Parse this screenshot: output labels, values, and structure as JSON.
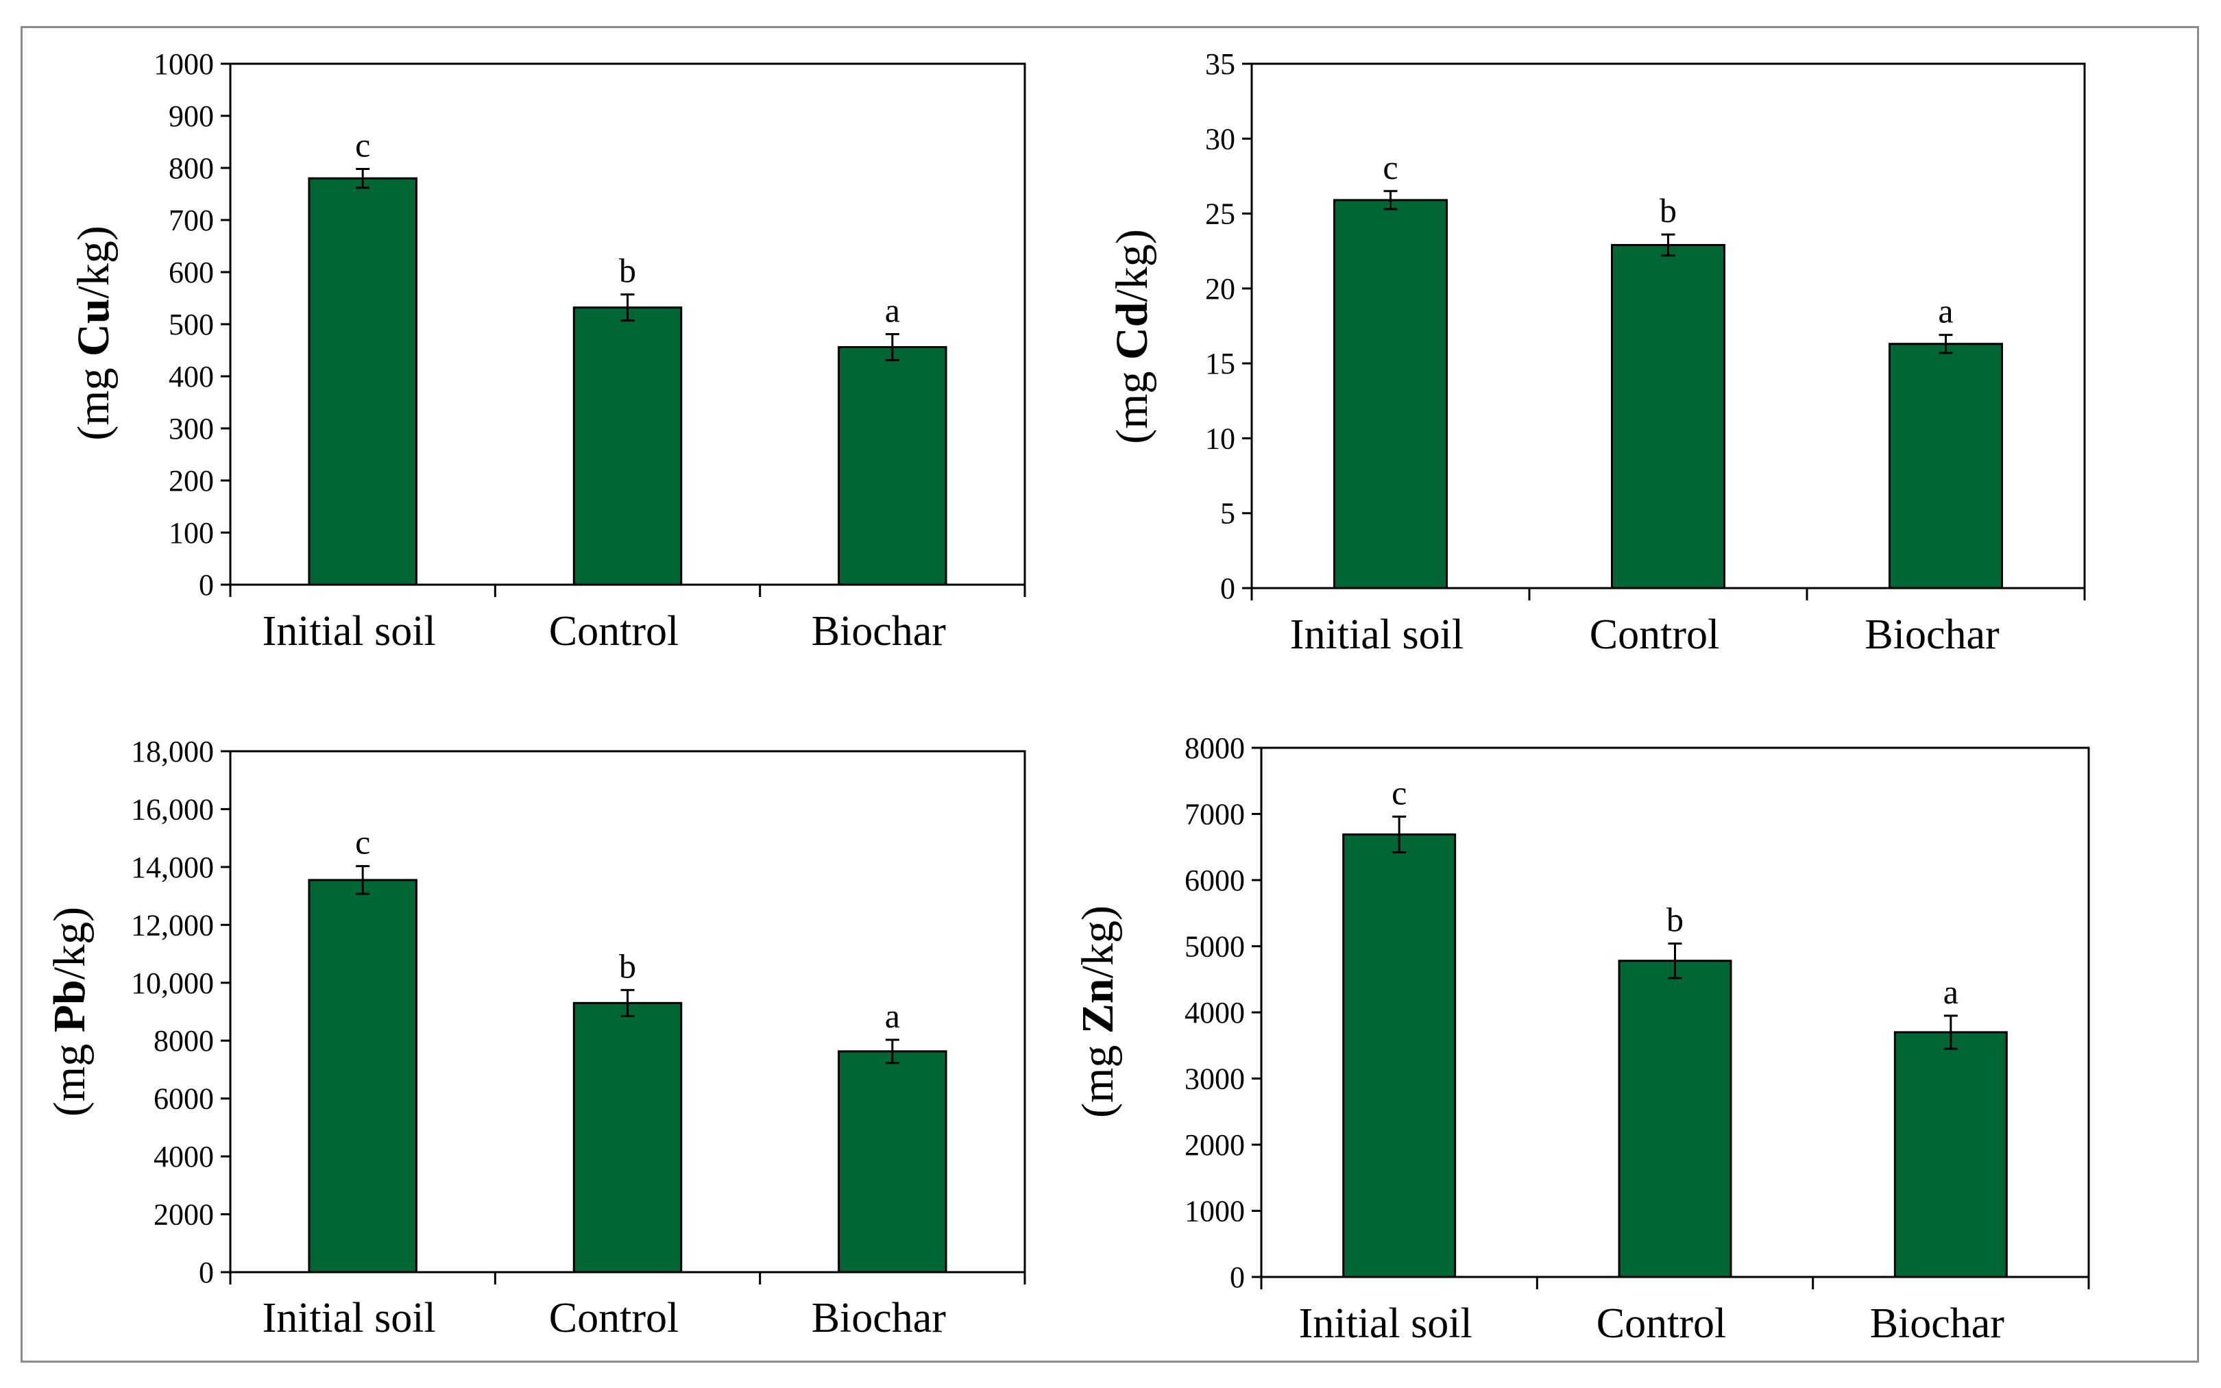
{
  "chart_data": [
    {
      "type": "bar",
      "categories": [
        "Initial soil",
        "Control",
        "Biochar"
      ],
      "values": [
        780,
        532,
        456
      ],
      "errors": [
        18,
        25,
        25
      ],
      "labels": [
        "c",
        "b",
        "a"
      ],
      "ylabel_parts": [
        "(mg ",
        "Cu",
        "/kg)"
      ],
      "yticks": [
        0,
        100,
        200,
        300,
        400,
        500,
        600,
        700,
        800,
        900,
        1000
      ],
      "ytick_labels": [
        "0",
        "100",
        "200",
        "300",
        "400",
        "500",
        "600",
        "700",
        "800",
        "900",
        "1000"
      ],
      "ylim": [
        0,
        1000
      ],
      "grid": false,
      "color": "#006633"
    },
    {
      "type": "bar",
      "categories": [
        "Initial soil",
        "Control",
        "Biochar"
      ],
      "values": [
        25.9,
        22.9,
        16.3
      ],
      "errors": [
        0.6,
        0.7,
        0.6
      ],
      "labels": [
        "c",
        "b",
        "a"
      ],
      "ylabel_parts": [
        "(mg ",
        "Cd",
        "/kg)"
      ],
      "yticks": [
        0,
        5,
        10,
        15,
        20,
        25,
        30,
        35
      ],
      "ytick_labels": [
        "0",
        "5",
        "10",
        "15",
        "20",
        "25",
        "30",
        "35"
      ],
      "ylim": [
        0,
        35
      ],
      "grid": false,
      "color": "#006633"
    },
    {
      "type": "bar",
      "categories": [
        "Initial soil",
        "Control",
        "Biochar"
      ],
      "values": [
        13550,
        9300,
        7630
      ],
      "errors": [
        480,
        450,
        400
      ],
      "labels": [
        "c",
        "b",
        "a"
      ],
      "ylabel_parts": [
        "(mg ",
        "Pb",
        "/kg)"
      ],
      "yticks": [
        0,
        2000,
        4000,
        6000,
        8000,
        10000,
        12000,
        14000,
        16000,
        18000
      ],
      "ytick_labels": [
        "0",
        "2000",
        "4000",
        "6000",
        "8000",
        "10,000",
        "12,000",
        "14,000",
        "16,000",
        "18,000"
      ],
      "ylim": [
        0,
        18000
      ],
      "grid": false,
      "color": "#006633"
    },
    {
      "type": "bar",
      "categories": [
        "Initial soil",
        "Control",
        "Biochar"
      ],
      "values": [
        6690,
        4780,
        3700
      ],
      "errors": [
        270,
        260,
        250
      ],
      "labels": [
        "c",
        "b",
        "a"
      ],
      "ylabel_parts": [
        "(mg ",
        "Zn",
        "/kg)"
      ],
      "yticks": [
        0,
        1000,
        2000,
        3000,
        4000,
        5000,
        6000,
        7000,
        8000
      ],
      "ytick_labels": [
        "0",
        "1000",
        "2000",
        "3000",
        "4000",
        "5000",
        "6000",
        "7000",
        "8000"
      ],
      "ylim": [
        0,
        8000
      ],
      "grid": false,
      "color": "#006633"
    }
  ]
}
